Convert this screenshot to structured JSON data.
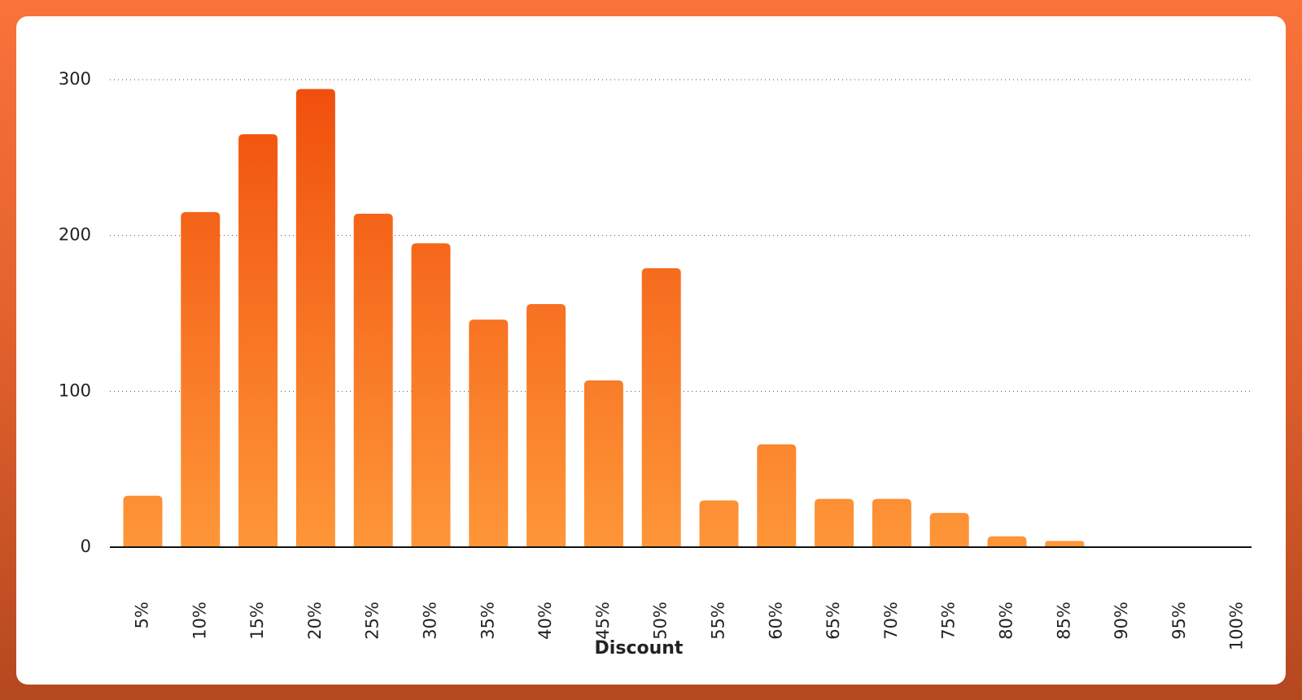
{
  "chart_data": {
    "type": "bar",
    "x_label": "Discount",
    "categories": [
      "5%",
      "10%",
      "15%",
      "20%",
      "25%",
      "30%",
      "35%",
      "40%",
      "45%",
      "50%",
      "55%",
      "60%",
      "65%",
      "70%",
      "75%",
      "80%",
      "85%",
      "90%",
      "95%",
      "100%"
    ],
    "values": [
      33,
      215,
      265,
      294,
      214,
      195,
      146,
      156,
      107,
      179,
      30,
      66,
      31,
      31,
      22,
      7,
      4,
      0,
      0,
      0
    ],
    "color": "#f04e0c",
    "color_bottom": "#fe9638",
    "ylim": [
      0,
      300
    ],
    "yticks": [
      0,
      100,
      200,
      300
    ],
    "grid": true
  }
}
